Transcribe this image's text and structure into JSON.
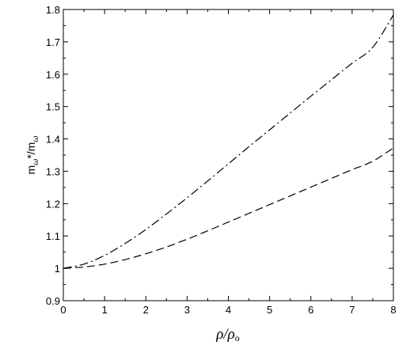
{
  "chart_data": {
    "type": "line",
    "title": "",
    "xlabel": {
      "main": "ρ/ρ",
      "sub": "o"
    },
    "ylabel": {
      "m": "m",
      "sub": "ω",
      "rest": "*/m",
      "sub2": "ω"
    },
    "xlim": [
      0,
      8
    ],
    "ylim": [
      0.9,
      1.8
    ],
    "xticks": [
      "0",
      "1",
      "2",
      "3",
      "4",
      "5",
      "6",
      "7",
      "8"
    ],
    "yticks": [
      "0.9",
      "1",
      "1.1",
      "1.2",
      "1.3",
      "1.4",
      "1.5",
      "1.6",
      "1.7",
      "1.8"
    ],
    "grid": false,
    "legend": "none",
    "series": [
      {
        "style": "dash-dot",
        "color": "#000000",
        "x": [
          0,
          0.5,
          1,
          1.5,
          2,
          2.5,
          3,
          3.5,
          4,
          4.5,
          5,
          5.5,
          6,
          6.5,
          7,
          7.5,
          8
        ],
        "y": [
          1.0,
          1.013,
          1.04,
          1.077,
          1.12,
          1.168,
          1.218,
          1.27,
          1.323,
          1.376,
          1.428,
          1.48,
          1.532,
          1.583,
          1.634,
          1.683,
          1.783
        ]
      },
      {
        "style": "dashed",
        "color": "#000000",
        "x": [
          0,
          0.5,
          1,
          1.5,
          2,
          2.5,
          3,
          3.5,
          4,
          4.5,
          5,
          5.5,
          6,
          6.5,
          7,
          7.5,
          8
        ],
        "y": [
          1.0,
          1.004,
          1.013,
          1.027,
          1.045,
          1.066,
          1.09,
          1.116,
          1.143,
          1.17,
          1.197,
          1.224,
          1.251,
          1.278,
          1.305,
          1.331,
          1.372
        ]
      }
    ]
  }
}
